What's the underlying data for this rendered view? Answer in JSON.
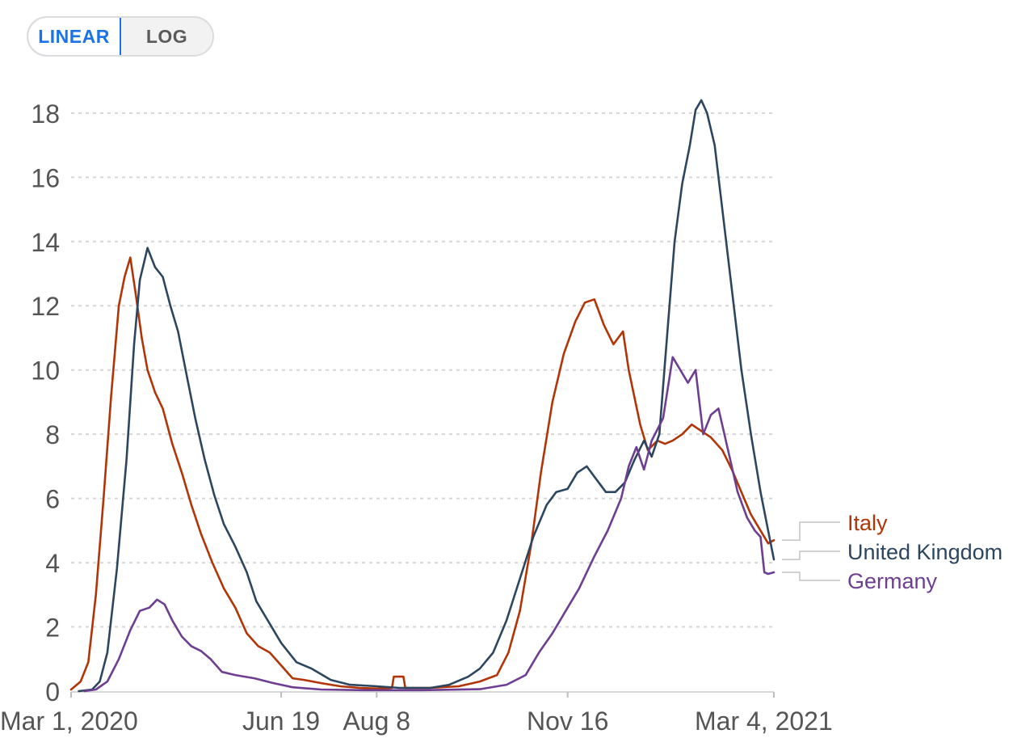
{
  "controls": {
    "scale_toggle": [
      {
        "label": "LINEAR",
        "active": true
      },
      {
        "label": "LOG",
        "active": false
      }
    ]
  },
  "chart_data": {
    "type": "line",
    "title": "",
    "xlabel": "",
    "ylabel": "",
    "x_axis": {
      "type": "date",
      "range": [
        "2020-03-01",
        "2021-03-04"
      ],
      "tick_labels": [
        {
          "date": "2020-03-01",
          "label": "Mar 1, 2020"
        },
        {
          "date": "2020-06-19",
          "label": "Jun 19"
        },
        {
          "date": "2020-08-08",
          "label": "Aug 8"
        },
        {
          "date": "2020-11-16",
          "label": "Nov 16"
        },
        {
          "date": "2021-03-04",
          "label": "Mar 4, 2021"
        }
      ]
    },
    "y_axis": {
      "range": [
        0,
        18.5
      ],
      "ticks": [
        0,
        2,
        4,
        6,
        8,
        10,
        12,
        14,
        16,
        18
      ],
      "gridlines": "dotted"
    },
    "legend_placement": "right (line end labels)",
    "series": [
      {
        "name": "Italy",
        "color": "#b13507",
        "points": [
          [
            "2020-03-01",
            0.05
          ],
          [
            "2020-03-06",
            0.3
          ],
          [
            "2020-03-10",
            0.9
          ],
          [
            "2020-03-14",
            3.0
          ],
          [
            "2020-03-18",
            6.0
          ],
          [
            "2020-03-22",
            9.2
          ],
          [
            "2020-03-26",
            12.0
          ],
          [
            "2020-03-29",
            12.9
          ],
          [
            "2020-04-01",
            13.5
          ],
          [
            "2020-04-04",
            12.3
          ],
          [
            "2020-04-07",
            11.0
          ],
          [
            "2020-04-10",
            10.0
          ],
          [
            "2020-04-14",
            9.3
          ],
          [
            "2020-04-18",
            8.8
          ],
          [
            "2020-04-23",
            7.7
          ],
          [
            "2020-04-28",
            6.8
          ],
          [
            "2020-05-03",
            5.8
          ],
          [
            "2020-05-08",
            4.9
          ],
          [
            "2020-05-14",
            4.0
          ],
          [
            "2020-05-20",
            3.2
          ],
          [
            "2020-05-26",
            2.6
          ],
          [
            "2020-06-01",
            1.8
          ],
          [
            "2020-06-07",
            1.4
          ],
          [
            "2020-06-13",
            1.2
          ],
          [
            "2020-06-19",
            0.8
          ],
          [
            "2020-06-25",
            0.4
          ],
          [
            "2020-07-01",
            0.35
          ],
          [
            "2020-07-10",
            0.25
          ],
          [
            "2020-07-20",
            0.15
          ],
          [
            "2020-07-30",
            0.1
          ],
          [
            "2020-08-08",
            0.08
          ],
          [
            "2020-08-16",
            0.1
          ],
          [
            "2020-08-17",
            0.45
          ],
          [
            "2020-08-22",
            0.45
          ],
          [
            "2020-08-23",
            0.1
          ],
          [
            "2020-09-05",
            0.1
          ],
          [
            "2020-09-20",
            0.15
          ],
          [
            "2020-10-01",
            0.3
          ],
          [
            "2020-10-10",
            0.5
          ],
          [
            "2020-10-16",
            1.2
          ],
          [
            "2020-10-22",
            2.5
          ],
          [
            "2020-10-28",
            4.6
          ],
          [
            "2020-11-02",
            6.8
          ],
          [
            "2020-11-08",
            9.0
          ],
          [
            "2020-11-14",
            10.5
          ],
          [
            "2020-11-20",
            11.5
          ],
          [
            "2020-11-25",
            12.1
          ],
          [
            "2020-11-30",
            12.2
          ],
          [
            "2020-12-05",
            11.4
          ],
          [
            "2020-12-10",
            10.8
          ],
          [
            "2020-12-15",
            11.2
          ],
          [
            "2020-12-18",
            10.0
          ],
          [
            "2020-12-24",
            8.3
          ],
          [
            "2020-12-28",
            7.5
          ],
          [
            "2021-01-02",
            7.8
          ],
          [
            "2021-01-06",
            7.7
          ],
          [
            "2021-01-10",
            7.8
          ],
          [
            "2021-01-15",
            8.0
          ],
          [
            "2021-01-20",
            8.3
          ],
          [
            "2021-01-25",
            8.1
          ],
          [
            "2021-01-30",
            7.9
          ],
          [
            "2021-02-05",
            7.5
          ],
          [
            "2021-02-10",
            6.9
          ],
          [
            "2021-02-15",
            6.2
          ],
          [
            "2021-02-20",
            5.5
          ],
          [
            "2021-02-25",
            5.0
          ],
          [
            "2021-03-01",
            4.6
          ],
          [
            "2021-03-04",
            4.7
          ]
        ]
      },
      {
        "name": "United Kingdom",
        "color": "#2d4660",
        "points": [
          [
            "2020-03-05",
            0.0
          ],
          [
            "2020-03-12",
            0.05
          ],
          [
            "2020-03-16",
            0.3
          ],
          [
            "2020-03-20",
            1.2
          ],
          [
            "2020-03-25",
            3.8
          ],
          [
            "2020-03-30",
            7.2
          ],
          [
            "2020-04-03",
            10.8
          ],
          [
            "2020-04-06",
            12.8
          ],
          [
            "2020-04-10",
            13.8
          ],
          [
            "2020-04-14",
            13.2
          ],
          [
            "2020-04-18",
            12.9
          ],
          [
            "2020-04-22",
            12.0
          ],
          [
            "2020-04-26",
            11.2
          ],
          [
            "2020-04-30",
            10.0
          ],
          [
            "2020-05-05",
            8.5
          ],
          [
            "2020-05-10",
            7.2
          ],
          [
            "2020-05-15",
            6.1
          ],
          [
            "2020-05-20",
            5.2
          ],
          [
            "2020-05-26",
            4.5
          ],
          [
            "2020-06-01",
            3.7
          ],
          [
            "2020-06-06",
            2.8
          ],
          [
            "2020-06-12",
            2.2
          ],
          [
            "2020-06-19",
            1.5
          ],
          [
            "2020-06-27",
            0.9
          ],
          [
            "2020-07-05",
            0.7
          ],
          [
            "2020-07-15",
            0.35
          ],
          [
            "2020-07-25",
            0.2
          ],
          [
            "2020-08-08",
            0.15
          ],
          [
            "2020-08-20",
            0.1
          ],
          [
            "2020-09-05",
            0.1
          ],
          [
            "2020-09-15",
            0.2
          ],
          [
            "2020-09-25",
            0.45
          ],
          [
            "2020-10-01",
            0.7
          ],
          [
            "2020-10-08",
            1.2
          ],
          [
            "2020-10-15",
            2.2
          ],
          [
            "2020-10-22",
            3.5
          ],
          [
            "2020-10-29",
            4.8
          ],
          [
            "2020-11-05",
            5.8
          ],
          [
            "2020-11-10",
            6.2
          ],
          [
            "2020-11-16",
            6.3
          ],
          [
            "2020-11-21",
            6.8
          ],
          [
            "2020-11-26",
            7.0
          ],
          [
            "2020-12-01",
            6.6
          ],
          [
            "2020-12-06",
            6.2
          ],
          [
            "2020-12-11",
            6.2
          ],
          [
            "2020-12-16",
            6.5
          ],
          [
            "2020-12-21",
            7.2
          ],
          [
            "2020-12-26",
            7.8
          ],
          [
            "2020-12-30",
            7.3
          ],
          [
            "2021-01-03",
            8.0
          ],
          [
            "2021-01-07",
            11.0
          ],
          [
            "2021-01-11",
            14.0
          ],
          [
            "2021-01-15",
            15.8
          ],
          [
            "2021-01-19",
            17.0
          ],
          [
            "2021-01-22",
            18.1
          ],
          [
            "2021-01-25",
            18.4
          ],
          [
            "2021-01-28",
            18.0
          ],
          [
            "2021-02-01",
            17.0
          ],
          [
            "2021-02-05",
            15.0
          ],
          [
            "2021-02-10",
            12.5
          ],
          [
            "2021-02-15",
            10.0
          ],
          [
            "2021-02-20",
            8.0
          ],
          [
            "2021-02-25",
            6.2
          ],
          [
            "2021-03-01",
            5.0
          ],
          [
            "2021-03-04",
            4.1
          ]
        ]
      },
      {
        "name": "Germany",
        "color": "#6d3e91",
        "points": [
          [
            "2020-03-08",
            0.0
          ],
          [
            "2020-03-14",
            0.05
          ],
          [
            "2020-03-20",
            0.3
          ],
          [
            "2020-03-26",
            1.0
          ],
          [
            "2020-04-01",
            1.9
          ],
          [
            "2020-04-06",
            2.5
          ],
          [
            "2020-04-11",
            2.6
          ],
          [
            "2020-04-15",
            2.85
          ],
          [
            "2020-04-19",
            2.7
          ],
          [
            "2020-04-23",
            2.2
          ],
          [
            "2020-04-28",
            1.7
          ],
          [
            "2020-05-03",
            1.4
          ],
          [
            "2020-05-08",
            1.25
          ],
          [
            "2020-05-13",
            1.0
          ],
          [
            "2020-05-19",
            0.6
          ],
          [
            "2020-05-26",
            0.5
          ],
          [
            "2020-06-05",
            0.4
          ],
          [
            "2020-06-15",
            0.25
          ],
          [
            "2020-06-25",
            0.12
          ],
          [
            "2020-07-10",
            0.05
          ],
          [
            "2020-08-01",
            0.03
          ],
          [
            "2020-09-01",
            0.03
          ],
          [
            "2020-10-01",
            0.06
          ],
          [
            "2020-10-15",
            0.2
          ],
          [
            "2020-10-25",
            0.5
          ],
          [
            "2020-11-01",
            1.2
          ],
          [
            "2020-11-08",
            1.8
          ],
          [
            "2020-11-15",
            2.5
          ],
          [
            "2020-11-22",
            3.2
          ],
          [
            "2020-11-30",
            4.2
          ],
          [
            "2020-12-07",
            5.0
          ],
          [
            "2020-12-14",
            6.0
          ],
          [
            "2020-12-18",
            7.0
          ],
          [
            "2020-12-22",
            7.6
          ],
          [
            "2020-12-26",
            6.9
          ],
          [
            "2020-12-30",
            7.8
          ],
          [
            "2021-01-05",
            8.5
          ],
          [
            "2021-01-10",
            10.4
          ],
          [
            "2021-01-14",
            10.0
          ],
          [
            "2021-01-18",
            9.6
          ],
          [
            "2021-01-22",
            10.0
          ],
          [
            "2021-01-26",
            8.0
          ],
          [
            "2021-01-30",
            8.6
          ],
          [
            "2021-02-03",
            8.8
          ],
          [
            "2021-02-08",
            7.5
          ],
          [
            "2021-02-13",
            6.2
          ],
          [
            "2021-02-18",
            5.4
          ],
          [
            "2021-02-22",
            5.0
          ],
          [
            "2021-02-25",
            4.8
          ],
          [
            "2021-02-27",
            3.7
          ],
          [
            "2021-03-01",
            3.65
          ],
          [
            "2021-03-04",
            3.7
          ]
        ]
      }
    ]
  }
}
